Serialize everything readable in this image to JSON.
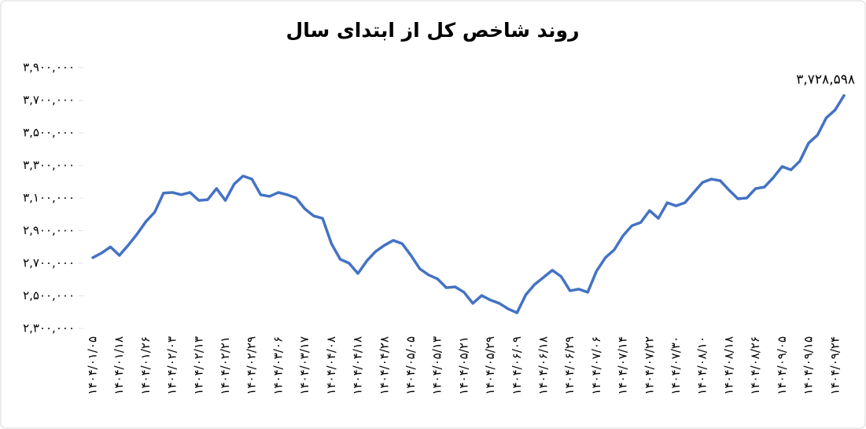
{
  "chart_data": {
    "type": "line",
    "title": "روند شاخص کل از ابتدای سال",
    "categories": [
      "۱۴۰۴/۰۱/۰۵",
      null,
      null,
      "۱۴۰۴/۰۱/۱۸",
      null,
      null,
      "۱۴۰۴/۰۱/۲۶",
      null,
      null,
      "۱۴۰۴/۰۲/۰۳",
      null,
      null,
      "۱۴۰۴/۰۲/۱۳",
      null,
      null,
      "۱۴۰۴/۰۲/۲۱",
      null,
      null,
      "۱۴۰۴/۰۲/۲۹",
      null,
      null,
      "۱۴۰۴/۰۳/۰۶",
      null,
      null,
      "۱۴۰۴/۰۳/۱۷",
      null,
      null,
      "۱۴۰۴/۰۴/۰۸",
      null,
      null,
      "۱۴۰۴/۰۴/۱۸",
      null,
      null,
      "۱۴۰۴/۰۴/۲۸",
      null,
      null,
      "۱۴۰۴/۰۵/۰۵",
      null,
      null,
      "۱۴۰۴/۰۵/۱۳",
      null,
      null,
      "۱۴۰۴/۰۵/۲۱",
      null,
      null,
      "۱۴۰۴/۰۵/۲۹",
      null,
      null,
      "۱۴۰۴/۰۶/۰۹",
      null,
      null,
      "۱۴۰۴/۰۶/۱۸",
      null,
      null,
      "۱۴۰۴/۰۶/۲۹",
      null,
      null,
      "۱۴۰۴/۰۷/۰۶",
      null,
      null,
      "۱۴۰۴/۰۷/۱۴",
      null,
      null,
      "۱۴۰۴/۰۷/۲۲",
      null,
      null,
      "۱۴۰۴/۰۷/۳۰",
      null,
      null,
      "۱۴۰۴/۰۸/۱۰",
      null,
      null,
      "۱۴۰۴/۰۸/۱۸",
      null,
      null,
      "۱۴۰۴/۰۸/۲۶",
      null,
      null,
      "۱۴۰۴/۰۹/۰۵",
      null,
      null,
      "۱۴۰۴/۰۹/۱۵",
      null,
      null,
      "۱۴۰۴/۰۹/۲۴",
      null
    ],
    "values": [
      2734000,
      2763000,
      2800000,
      2748000,
      2810000,
      2878000,
      2955000,
      3013000,
      3130000,
      3134000,
      3120000,
      3134000,
      3085000,
      3090000,
      3158000,
      3085000,
      3186000,
      3235000,
      3216000,
      3120000,
      3110000,
      3134000,
      3120000,
      3100000,
      3033000,
      2990000,
      2975000,
      2820000,
      2724000,
      2700000,
      2637000,
      2714000,
      2772000,
      2810000,
      2840000,
      2820000,
      2748000,
      2666000,
      2628000,
      2604000,
      2550000,
      2555000,
      2522000,
      2454000,
      2502000,
      2474000,
      2454000,
      2420000,
      2396000,
      2507000,
      2570000,
      2613000,
      2657000,
      2618000,
      2531000,
      2541000,
      2522000,
      2652000,
      2734000,
      2782000,
      2869000,
      2930000,
      2950000,
      3023000,
      2975000,
      3071000,
      3052000,
      3071000,
      3134000,
      3196000,
      3216000,
      3206000,
      3148000,
      3095000,
      3100000,
      3158000,
      3167000,
      3225000,
      3293000,
      3273000,
      3326000,
      3437000,
      3486000,
      3592000,
      3640000,
      3728598
    ],
    "value_labels": [
      null,
      null,
      null,
      null,
      null,
      null,
      null,
      null,
      null,
      null,
      null,
      null,
      null,
      null,
      null,
      null,
      null,
      null,
      null,
      null,
      null,
      null,
      null,
      null,
      null,
      null,
      null,
      null,
      null,
      null,
      null,
      null,
      null,
      null,
      null,
      null,
      null,
      null,
      null,
      null,
      null,
      null,
      null,
      null,
      null,
      null,
      null,
      null,
      null,
      null,
      null,
      null,
      null,
      null,
      null,
      null,
      null,
      null,
      null,
      null,
      null,
      null,
      null,
      null,
      null,
      null,
      null,
      null,
      null,
      null,
      null,
      null,
      null,
      null,
      null,
      null,
      null,
      null,
      null,
      null,
      null,
      null,
      null,
      null,
      null,
      "۳,۷۲۸,۵۹۸"
    ],
    "color": "#4472c4",
    "ylim": [
      2300000,
      3900000
    ],
    "yticks": [
      {
        "value": 2300000,
        "label": "۲,۳۰۰,۰۰۰"
      },
      {
        "value": 2500000,
        "label": "۲,۵۰۰,۰۰۰"
      },
      {
        "value": 2700000,
        "label": "۲,۷۰۰,۰۰۰"
      },
      {
        "value": 2900000,
        "label": "۲,۹۰۰,۰۰۰"
      },
      {
        "value": 3100000,
        "label": "۳,۱۰۰,۰۰۰"
      },
      {
        "value": 3300000,
        "label": "۳,۳۰۰,۰۰۰"
      },
      {
        "value": 3500000,
        "label": "۳,۵۰۰,۰۰۰"
      },
      {
        "value": 3700000,
        "label": "۳,۷۰۰,۰۰۰"
      },
      {
        "value": 3900000,
        "label": "۳,۹۰۰,۰۰۰"
      }
    ],
    "grid": false
  }
}
